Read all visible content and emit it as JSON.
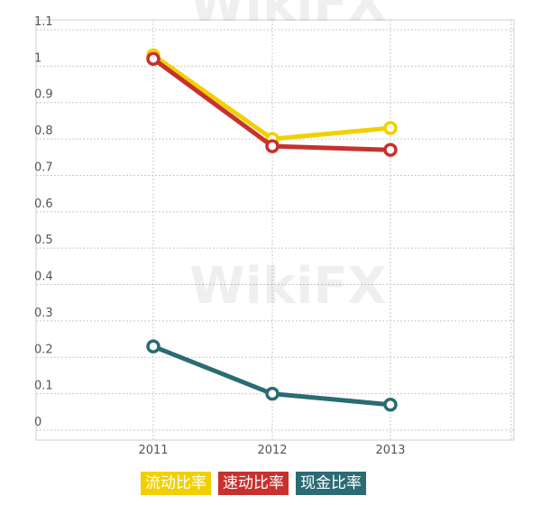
{
  "chart_data": {
    "type": "line",
    "categories": [
      "2011",
      "2012",
      "2013"
    ],
    "y_ticks": [
      "0",
      "0.1",
      "0.2",
      "0.3",
      "0.4",
      "0.5",
      "0.6",
      "0.7",
      "0.8",
      "0.9",
      "1",
      "1.1"
    ],
    "ylim": [
      0,
      1.1
    ],
    "grid": true,
    "legend_position": "bottom-center",
    "series": [
      {
        "name": "流动比率",
        "color": "#f2d000",
        "values": [
          1.03,
          0.8,
          0.83
        ]
      },
      {
        "name": "速动比率",
        "color": "#c8312e",
        "values": [
          1.02,
          0.78,
          0.77
        ]
      },
      {
        "name": "现金比率",
        "color": "#2a6b74",
        "values": [
          0.23,
          0.1,
          0.07
        ]
      }
    ]
  },
  "watermark": "WikiFX"
}
